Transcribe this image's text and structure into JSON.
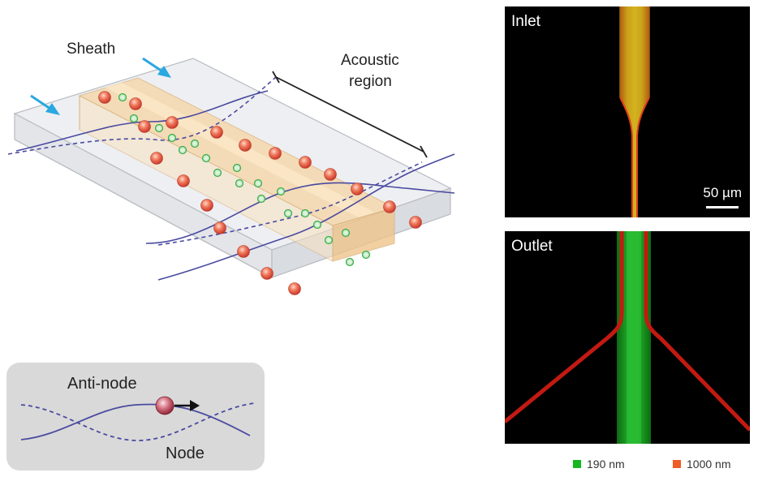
{
  "diagram": {
    "labels": {
      "sheath": "Sheath",
      "acoustic_region_line1": "Acoustic",
      "acoustic_region_line2": "region"
    },
    "inset": {
      "anti_node_label": "Anti-node",
      "node_label": "Node"
    }
  },
  "images": {
    "inlet_label": "Inlet",
    "outlet_label": "Outlet",
    "scale_bar_label": "50 µm"
  },
  "legend": {
    "items": [
      {
        "label": "190 nm",
        "color": "#12b81e"
      },
      {
        "label": "1000 nm",
        "color": "#f05a24"
      }
    ]
  },
  "colors": {
    "large_particle": "#e8543a",
    "small_particle": "#4dbb55",
    "wave": "#4a4aa0",
    "flow_arrow": "#2aa8e0",
    "sheath_region": "#f7d7a8"
  }
}
